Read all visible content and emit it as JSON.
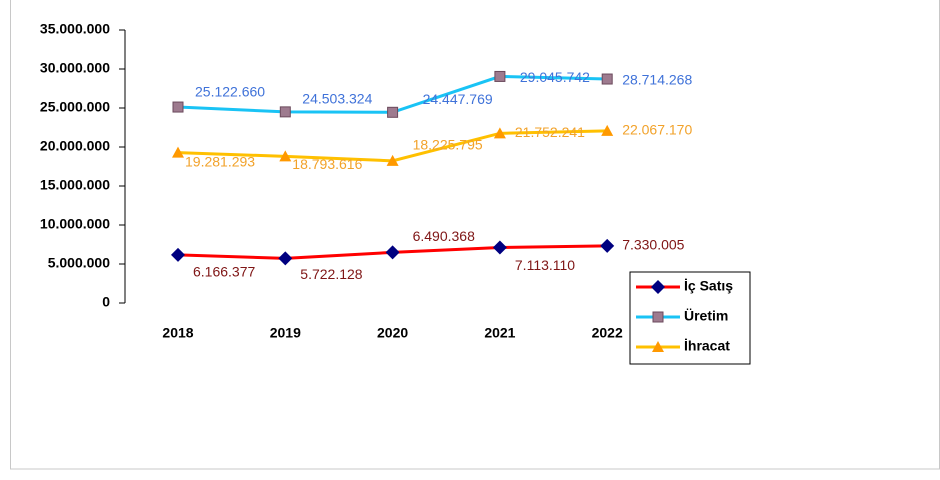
{
  "chart_data": {
    "type": "line",
    "categories": [
      "2018",
      "2019",
      "2020",
      "2021",
      "2022"
    ],
    "series": [
      {
        "name": "İç Satış",
        "color": "#ff0000",
        "marker": "diamond",
        "marker_color": "#000080",
        "label_color": "#7f1515",
        "values": [
          6166377,
          5722128,
          6490368,
          7113110,
          7330005
        ],
        "value_labels": [
          "6.166.377",
          "5.722.128",
          "6.490.368",
          "7.113.110",
          "7.330.005"
        ]
      },
      {
        "name": "Üretim",
        "color": "#19c3f5",
        "marker": "square",
        "marker_color": "#9e7b8f",
        "label_color": "#3f72d9",
        "values": [
          25122660,
          24503324,
          24447769,
          29045742,
          28714268
        ],
        "value_labels": [
          "25.122.660",
          "24.503.324",
          "24.447.769",
          "29.045.742",
          "28.714.268"
        ]
      },
      {
        "name": "İhracat",
        "color": "#ffc000",
        "marker": "triangle",
        "marker_color": "#ff9900",
        "label_color": "#f2a22a",
        "values": [
          19281293,
          18793616,
          18225795,
          21752241,
          22067170
        ],
        "value_labels": [
          "19.281.293",
          "18.793.616",
          "18.225.795",
          "21.752.241",
          "22.067.170"
        ]
      }
    ],
    "ylim": [
      0,
      35000000
    ],
    "yticks": [
      0,
      {
        "value": 5000000,
        "label": "5.000.000"
      },
      {
        "value": 10000000,
        "label": "10.000.000"
      },
      {
        "value": 15000000,
        "label": "15.000.000"
      },
      {
        "value": 20000000,
        "label": "20.000.000"
      },
      {
        "value": 25000000,
        "label": "25.000.000"
      },
      {
        "value": 30000000,
        "label": "30.000.000"
      },
      {
        "value": 35000000,
        "label": "35.000.000"
      }
    ],
    "grid": false,
    "legend": "lower right"
  }
}
